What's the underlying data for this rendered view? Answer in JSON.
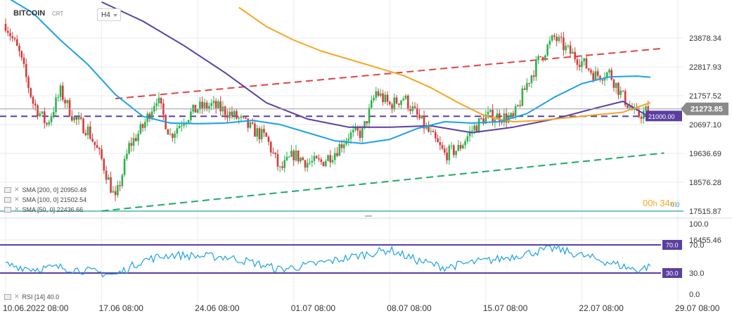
{
  "header": {
    "symbol": "BITCOIN",
    "subtitle": "CRT",
    "timeframe": "H4"
  },
  "indicators": [
    {
      "label": "SMA [200, 0] 20950.48",
      "color": "#5b3fa0"
    },
    {
      "label": "SMA [100, 0] 21502.54",
      "color": "#f5a623"
    },
    {
      "label": "SMA [50, 0] 22436.66",
      "color": "#1da1e8"
    }
  ],
  "rsi_legend": "RSI [14] 40.0",
  "countdown": {
    "hours": "00",
    "h": "h",
    "minutes": "34",
    "m": "m"
  },
  "price_axis": {
    "ticks": [
      "23878.34",
      "22817.93",
      "21757.52",
      "20697.10",
      "19636.69",
      "18576.28",
      "17515.87",
      "16455.46"
    ],
    "current_price": "21273.85",
    "level_label": "21000.00",
    "zero_label": "0.0"
  },
  "rsi_axis": {
    "ticks": [
      "100.0",
      "70.0",
      "30.0",
      "0.0"
    ],
    "upper_badge": "70.0",
    "lower_badge": "30.0"
  },
  "time_axis": [
    "10.06.2022 08:00",
    "17.06 08:00",
    "24.06 08:00",
    "01.07 08:00",
    "08.07 08:00",
    "15.07 08:00",
    "22.07 08:00",
    "29.07 08:00"
  ],
  "colors": {
    "up": "#2bb24c",
    "down": "#d63b3b",
    "sma50": "#1da1e8",
    "sma100": "#f5a623",
    "sma200": "#5b3fa0",
    "resistance": "#e04444",
    "support": "#1fa86a",
    "level": "#5b3fa0",
    "baseline": "#26a69a",
    "rsi": "#1da1e8",
    "rsi_band": "#5b3fa0",
    "grid": "#ebebeb"
  },
  "chart_data": [
    {
      "type": "candlestick",
      "title": "BITCOIN",
      "timeframe": "H4",
      "x_ticks": [
        "10.06.2022 08:00",
        "17.06 08:00",
        "24.06 08:00",
        "01.07 08:00",
        "08.07 08:00",
        "15.07 08:00",
        "22.07 08:00",
        "29.07 08:00"
      ],
      "ylim": [
        16000,
        24600
      ],
      "y_ticks": [
        23878.34,
        22817.93,
        21757.52,
        20697.1,
        19636.69,
        18576.28,
        17515.87,
        16455.46
      ],
      "close_path": [
        {
          "x": "2022-06-10",
          "y": 24400
        },
        {
          "x": "2022-06-11",
          "y": 23300
        },
        {
          "x": "2022-06-12",
          "y": 21500
        },
        {
          "x": "2022-06-13",
          "y": 20700
        },
        {
          "x": "2022-06-14",
          "y": 21900
        },
        {
          "x": "2022-06-15",
          "y": 20900
        },
        {
          "x": "2022-06-16",
          "y": 20500
        },
        {
          "x": "2022-06-17",
          "y": 19400
        },
        {
          "x": "2022-06-18",
          "y": 17900
        },
        {
          "x": "2022-06-19",
          "y": 19900
        },
        {
          "x": "2022-06-20",
          "y": 20600
        },
        {
          "x": "2022-06-21",
          "y": 21700
        },
        {
          "x": "2022-06-22",
          "y": 20300
        },
        {
          "x": "2022-06-23",
          "y": 20900
        },
        {
          "x": "2022-06-24",
          "y": 21300
        },
        {
          "x": "2022-06-25",
          "y": 21400
        },
        {
          "x": "2022-06-26",
          "y": 21200
        },
        {
          "x": "2022-06-27",
          "y": 20900
        },
        {
          "x": "2022-06-28",
          "y": 20500
        },
        {
          "x": "2022-06-29",
          "y": 20200
        },
        {
          "x": "2022-06-30",
          "y": 19000
        },
        {
          "x": "2022-07-01",
          "y": 19600
        },
        {
          "x": "2022-07-02",
          "y": 19300
        },
        {
          "x": "2022-07-03",
          "y": 19300
        },
        {
          "x": "2022-07-04",
          "y": 19700
        },
        {
          "x": "2022-07-05",
          "y": 20300
        },
        {
          "x": "2022-07-06",
          "y": 20400
        },
        {
          "x": "2022-07-07",
          "y": 21900
        },
        {
          "x": "2022-07-08",
          "y": 21400
        },
        {
          "x": "2022-07-09",
          "y": 21700
        },
        {
          "x": "2022-07-10",
          "y": 21000
        },
        {
          "x": "2022-07-11",
          "y": 20300
        },
        {
          "x": "2022-07-12",
          "y": 19600
        },
        {
          "x": "2022-07-13",
          "y": 19800
        },
        {
          "x": "2022-07-14",
          "y": 20500
        },
        {
          "x": "2022-07-15",
          "y": 21000
        },
        {
          "x": "2022-07-16",
          "y": 21000
        },
        {
          "x": "2022-07-17",
          "y": 20900
        },
        {
          "x": "2022-07-18",
          "y": 22200
        },
        {
          "x": "2022-07-19",
          "y": 23200
        },
        {
          "x": "2022-07-20",
          "y": 23900
        },
        {
          "x": "2022-07-21",
          "y": 23400
        },
        {
          "x": "2022-07-22",
          "y": 23000
        },
        {
          "x": "2022-07-23",
          "y": 22500
        },
        {
          "x": "2022-07-24",
          "y": 22600
        },
        {
          "x": "2022-07-25",
          "y": 21700
        },
        {
          "x": "2022-07-26",
          "y": 21000
        },
        {
          "x": "2022-07-27",
          "y": 21270
        }
      ],
      "sma50": [
        {
          "x": "2022-06-10",
          "y": 25400
        },
        {
          "x": "2022-06-12",
          "y": 24800
        },
        {
          "x": "2022-06-14",
          "y": 23800
        },
        {
          "x": "2022-06-16",
          "y": 22900
        },
        {
          "x": "2022-06-18",
          "y": 21800
        },
        {
          "x": "2022-06-20",
          "y": 21000
        },
        {
          "x": "2022-06-22",
          "y": 20750
        },
        {
          "x": "2022-06-24",
          "y": 20730
        },
        {
          "x": "2022-06-26",
          "y": 20750
        },
        {
          "x": "2022-06-28",
          "y": 20850
        },
        {
          "x": "2022-06-30",
          "y": 20700
        },
        {
          "x": "2022-07-02",
          "y": 20400
        },
        {
          "x": "2022-07-04",
          "y": 20100
        },
        {
          "x": "2022-07-06",
          "y": 20000
        },
        {
          "x": "2022-07-08",
          "y": 20150
        },
        {
          "x": "2022-07-10",
          "y": 20550
        },
        {
          "x": "2022-07-12",
          "y": 20800
        },
        {
          "x": "2022-07-14",
          "y": 20750
        },
        {
          "x": "2022-07-16",
          "y": 20800
        },
        {
          "x": "2022-07-18",
          "y": 21100
        },
        {
          "x": "2022-07-20",
          "y": 21700
        },
        {
          "x": "2022-07-22",
          "y": 22200
        },
        {
          "x": "2022-07-24",
          "y": 22450
        },
        {
          "x": "2022-07-26",
          "y": 22480
        },
        {
          "x": "2022-07-27",
          "y": 22437
        }
      ],
      "sma100": [
        {
          "x": "2022-06-27",
          "y": 25000
        },
        {
          "x": "2022-06-29",
          "y": 24300
        },
        {
          "x": "2022-07-01",
          "y": 23800
        },
        {
          "x": "2022-07-03",
          "y": 23400
        },
        {
          "x": "2022-07-05",
          "y": 23100
        },
        {
          "x": "2022-07-07",
          "y": 22800
        },
        {
          "x": "2022-07-09",
          "y": 22500
        },
        {
          "x": "2022-07-11",
          "y": 22050
        },
        {
          "x": "2022-07-13",
          "y": 21500
        },
        {
          "x": "2022-07-15",
          "y": 21000
        },
        {
          "x": "2022-07-17",
          "y": 20800
        },
        {
          "x": "2022-07-19",
          "y": 20850
        },
        {
          "x": "2022-07-21",
          "y": 20950
        },
        {
          "x": "2022-07-23",
          "y": 21050
        },
        {
          "x": "2022-07-25",
          "y": 21150
        },
        {
          "x": "2022-07-27",
          "y": 21503
        }
      ],
      "sma200": [
        {
          "x": "2022-06-17",
          "y": 25200
        },
        {
          "x": "2022-06-20",
          "y": 24500
        },
        {
          "x": "2022-06-23",
          "y": 23600
        },
        {
          "x": "2022-06-26",
          "y": 22600
        },
        {
          "x": "2022-06-29",
          "y": 21500
        },
        {
          "x": "2022-07-02",
          "y": 20900
        },
        {
          "x": "2022-07-05",
          "y": 20600
        },
        {
          "x": "2022-07-08",
          "y": 20600
        },
        {
          "x": "2022-07-11",
          "y": 20650
        },
        {
          "x": "2022-07-14",
          "y": 20400
        },
        {
          "x": "2022-07-17",
          "y": 20600
        },
        {
          "x": "2022-07-20",
          "y": 20900
        },
        {
          "x": "2022-07-23",
          "y": 21300
        },
        {
          "x": "2022-07-25",
          "y": 21550
        },
        {
          "x": "2022-07-27",
          "y": 20950
        }
      ],
      "trendlines": [
        {
          "name": "resistance",
          "style": "dashed",
          "from": {
            "x": "2022-06-18",
            "y": 21650
          },
          "to": {
            "x": "2022-07-28",
            "y": 23500
          }
        },
        {
          "name": "support",
          "style": "dashed",
          "from": {
            "x": "2022-06-17",
            "y": 17520
          },
          "to": {
            "x": "2022-07-28",
            "y": 19650
          }
        }
      ],
      "horizontal_levels": [
        {
          "name": "level",
          "style": "dashed",
          "y": 21000
        },
        {
          "name": "baseline",
          "style": "solid",
          "y": 17515.87
        }
      ],
      "current_price": 21273.85,
      "legend": [
        "SMA [200, 0] 20950.48",
        "SMA [100, 0] 21502.54",
        "SMA [50, 0] 22436.66"
      ]
    },
    {
      "type": "line",
      "title": "RSI [14] 40.0",
      "ylim": [
        0,
        100
      ],
      "y_ticks": [
        100,
        70,
        30,
        0
      ],
      "bands": [
        70,
        30
      ],
      "series": [
        {
          "name": "RSI [14]",
          "points": [
            {
              "x": "2022-06-10",
              "y": 42
            },
            {
              "x": "2022-06-12",
              "y": 36
            },
            {
              "x": "2022-06-14",
              "y": 38
            },
            {
              "x": "2022-06-16",
              "y": 33
            },
            {
              "x": "2022-06-18",
              "y": 27
            },
            {
              "x": "2022-06-20",
              "y": 48
            },
            {
              "x": "2022-06-22",
              "y": 56
            },
            {
              "x": "2022-06-24",
              "y": 54
            },
            {
              "x": "2022-06-26",
              "y": 53
            },
            {
              "x": "2022-06-28",
              "y": 45
            },
            {
              "x": "2022-06-30",
              "y": 35
            },
            {
              "x": "2022-07-02",
              "y": 41
            },
            {
              "x": "2022-07-04",
              "y": 48
            },
            {
              "x": "2022-07-06",
              "y": 56
            },
            {
              "x": "2022-07-08",
              "y": 63
            },
            {
              "x": "2022-07-10",
              "y": 48
            },
            {
              "x": "2022-07-12",
              "y": 38
            },
            {
              "x": "2022-07-14",
              "y": 45
            },
            {
              "x": "2022-07-16",
              "y": 50
            },
            {
              "x": "2022-07-18",
              "y": 58
            },
            {
              "x": "2022-07-20",
              "y": 65
            },
            {
              "x": "2022-07-22",
              "y": 55
            },
            {
              "x": "2022-07-24",
              "y": 45
            },
            {
              "x": "2022-07-26",
              "y": 34
            },
            {
              "x": "2022-07-27",
              "y": 40
            }
          ]
        }
      ]
    }
  ]
}
